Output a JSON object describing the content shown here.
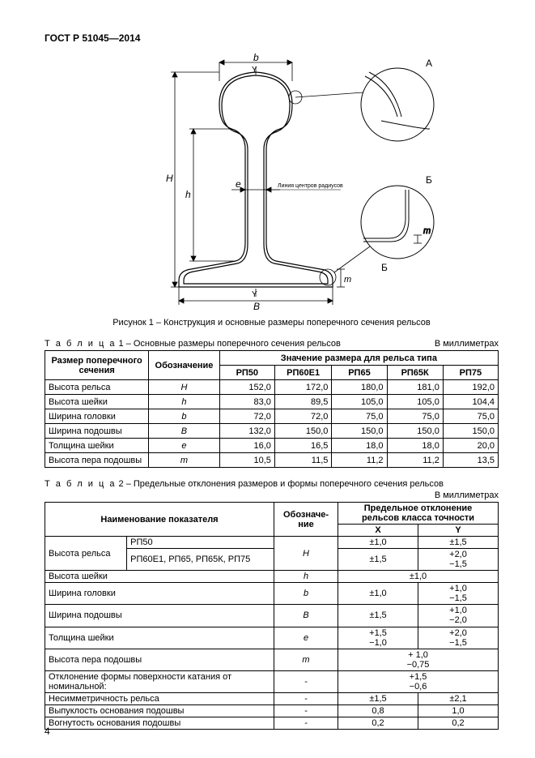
{
  "doc_id": "ГОСТ Р 51045—2014",
  "figure": {
    "labels": {
      "b": "b",
      "Y_top": "Y",
      "A": "A",
      "B_side": "Б",
      "H": "H",
      "h": "h",
      "e": "e",
      "m1": "m",
      "m2": "m",
      "B_bot": "B",
      "Y_bot": "Y",
      "radii_line": "Линия центров радиусов"
    },
    "caption": "Рисунок 1 – Конструкция и основные размеры поперечного сечения рельсов"
  },
  "units_label": "В миллиметрах",
  "table1": {
    "title_prefix": "Т а б л и ц а",
    "title": "  1 – Основные размеры поперечного сечения рельсов",
    "col_param": "Размер поперечного сечения",
    "col_sym": "Обозначение",
    "col_group": "Значение размера для рельса типа",
    "types": [
      "РП50",
      "РП60Е1",
      "РП65",
      "РП65К",
      "РП75"
    ],
    "rows": [
      {
        "name": "Высота рельса",
        "sym": "H",
        "vals": [
          "152,0",
          "172,0",
          "180,0",
          "181,0",
          "192,0"
        ]
      },
      {
        "name": "Высота шейки",
        "sym": "h",
        "vals": [
          "83,0",
          "89,5",
          "105,0",
          "105,0",
          "104,4"
        ]
      },
      {
        "name": "Ширина головки",
        "sym": "b",
        "vals": [
          "72,0",
          "72,0",
          "75,0",
          "75,0",
          "75,0"
        ]
      },
      {
        "name": "Ширина подошвы",
        "sym": "B",
        "vals": [
          "132,0",
          "150,0",
          "150,0",
          "150,0",
          "150,0"
        ]
      },
      {
        "name": "Толщина шейки",
        "sym": "e",
        "vals": [
          "16,0",
          "16,5",
          "18,0",
          "18,0",
          "20,0"
        ]
      },
      {
        "name": "Высота пера подошвы",
        "sym": "m",
        "vals": [
          "10,5",
          "11,5",
          "11,2",
          "11,2",
          "13,5"
        ]
      }
    ]
  },
  "table2": {
    "title_prefix": "Т а б л и ц а",
    "title": "  2 – Предельные отклонения размеров и формы поперечного сечения рельсов",
    "col_param": "Наименование показателя",
    "col_sym": "Обозначе-\nние",
    "col_group": "Предельное отклонение\nрельсов класса точности",
    "col_x": "X",
    "col_y": "Y",
    "rows": [
      {
        "name": "Высота рельса",
        "sub1": "РП50",
        "sub2": "РП60Е1, РП65, РП65К, РП75",
        "sym": "H",
        "x1": "±1,0",
        "y1": "±1,5",
        "x2": "±1,5",
        "y2": "+2,0\n−1,5"
      },
      {
        "name": "Высота шейки",
        "sym": "h",
        "x": "±1,0",
        "y": ""
      },
      {
        "name": "Ширина головки",
        "sym": "b",
        "x": "±1,0",
        "y": "+1,0\n−1,5"
      },
      {
        "name": "Ширина подошвы",
        "sym": "B",
        "x": "±1,5",
        "y": "+1,0\n−2,0"
      },
      {
        "name": "Толщина шейки",
        "sym": "e",
        "x": "+1,5\n−1,0",
        "y": "+2,0\n−1,5"
      },
      {
        "name": "Высота пера подошвы",
        "sym": "m",
        "x": "+ 1,0\n−0,75",
        "y": ""
      },
      {
        "name": "Отклонение формы поверхности катания от номинальной:",
        "sym": "-",
        "x": "+1,5\n−0,6",
        "y": ""
      },
      {
        "name": "Несимметричность рельса",
        "sym": "-",
        "x": "±1,5",
        "y": "±2,1"
      },
      {
        "name": "Выпуклость основания подошвы",
        "sym": "-",
        "x": "0,8",
        "y": "1,0"
      },
      {
        "name": "Вогнутость основания подошвы",
        "sym": "-",
        "x": "0,2",
        "y": "0,2"
      }
    ]
  },
  "page_num": "4"
}
